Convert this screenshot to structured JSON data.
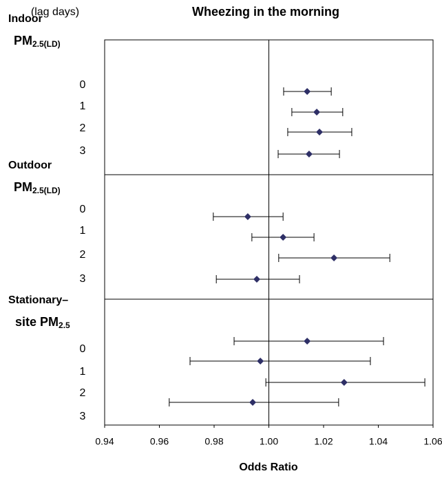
{
  "chart_data": {
    "type": "forest",
    "title": "Wheezing in the morning",
    "row_axis_label": "(lag days)",
    "xlabel": "Odds Ratio",
    "xlim": [
      0.94,
      1.06
    ],
    "xticks": [
      0.94,
      0.96,
      0.98,
      {
        "value": 1,
        "label": "1.00"
      },
      1.02,
      1.04,
      1.06
    ],
    "reference_line": 1,
    "color": "#2e2f66",
    "groups": [
      {
        "label": "Indoor",
        "pollutant": "PM",
        "subscript": "2.5(LD)",
        "lags": [
          0,
          1,
          2,
          3
        ],
        "values": [
          1.014,
          1.0175,
          1.0185,
          1.0147
        ],
        "ci_low": [
          1.0054,
          1.0084,
          1.0069,
          1.0034
        ],
        "ci_high": [
          1.0228,
          1.027,
          1.0303,
          1.0258
        ]
      },
      {
        "label": "Outdoor",
        "pollutant": "PM",
        "subscript": "2.5(LD)",
        "lags": [
          0,
          1,
          2,
          3
        ],
        "values": [
          0.9923,
          1.0052,
          1.0238,
          0.9956
        ],
        "ci_low": [
          0.9797,
          0.9938,
          1.0036,
          0.9808
        ],
        "ci_high": [
          1.0052,
          1.0165,
          1.0442,
          1.0112
        ]
      },
      {
        "label": "Stationary–",
        "pollutant": "site PM",
        "subscript": "2.5",
        "lags": [
          0,
          1,
          2,
          3
        ],
        "values": [
          1.014,
          0.9969,
          1.0275,
          0.9941
        ],
        "ci_low": [
          0.9873,
          0.9712,
          0.9989,
          0.9636
        ],
        "ci_high": [
          1.0419,
          1.0371,
          1.057,
          1.0255
        ]
      }
    ]
  }
}
